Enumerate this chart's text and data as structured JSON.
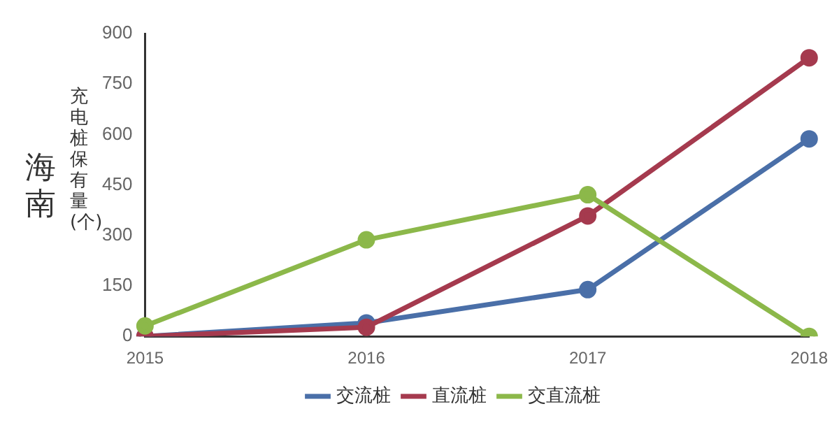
{
  "chart_data": {
    "type": "line",
    "title": "海南",
    "ylabel": "充电桩保有量(个)",
    "categories": [
      "2015",
      "2016",
      "2017",
      "2018"
    ],
    "series": [
      {
        "name": "交流桩",
        "color": "#4a6fa8",
        "values": [
          0,
          40,
          139,
          587
        ]
      },
      {
        "name": "直流桩",
        "color": "#a53a4e",
        "values": [
          0,
          27,
          358,
          828
        ]
      },
      {
        "name": "交直流桩",
        "color": "#8cb84a",
        "values": [
          31,
          287,
          421,
          0
        ]
      }
    ],
    "ylim": [
      0,
      900
    ],
    "yticks": [
      0,
      150,
      300,
      450,
      600,
      750,
      900
    ],
    "grid": false,
    "legend": "bottom",
    "marker": "circle",
    "line_style": "solid"
  }
}
